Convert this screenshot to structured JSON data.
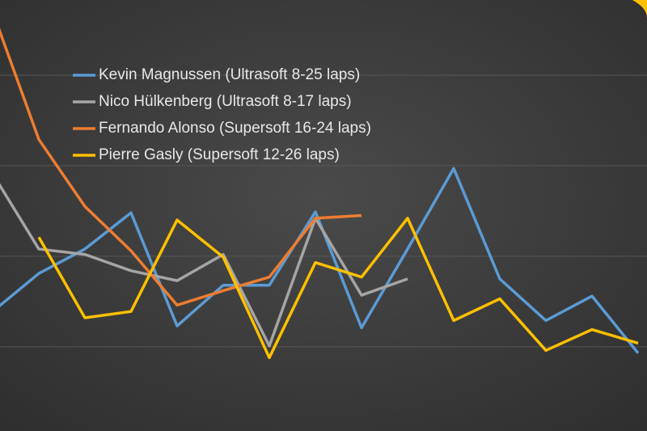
{
  "chart_data": {
    "type": "line",
    "categories": [
      null,
      null,
      null,
      null,
      null,
      null,
      null,
      null,
      null,
      null,
      null,
      null,
      null,
      null,
      null
    ],
    "series": [
      {
        "name": "Kevin Magnussen (Ultrasoft 8-25 laps)",
        "color": "#5b9bd5",
        "values": [
          1.39,
          1.81,
          2.08,
          2.48,
          1.23,
          1.68,
          1.68,
          2.49,
          1.21,
          2.08,
          2.97,
          1.75,
          1.29,
          1.56,
          0.93
        ]
      },
      {
        "name": "Nico Hülkenberg (Ultrasoft 8-17 laps)",
        "color": "#a5a5a5",
        "values": [
          2.91,
          2.08,
          2.02,
          1.84,
          1.73,
          2.02,
          1.01,
          2.42,
          1.57,
          1.75,
          null,
          null,
          null,
          null,
          null
        ]
      },
      {
        "name": "Fernando Alonso (Supersoft 16-24 laps)",
        "color": "#ed7d31",
        "values": [
          4.7,
          3.29,
          2.55,
          2.06,
          1.46,
          1.62,
          1.77,
          2.42,
          2.45,
          null,
          null,
          null,
          null,
          null,
          null
        ]
      },
      {
        "name": "Pierre Gasly (Supersoft 12-26 laps)",
        "color": "#ffc000",
        "values": [
          null,
          2.21,
          1.32,
          1.39,
          2.4,
          1.99,
          0.88,
          1.93,
          1.77,
          2.42,
          1.29,
          1.53,
          0.96,
          1.19,
          1.04
        ]
      }
    ],
    "ylim": [
      0.07,
      4.83
    ],
    "yticks": [
      1,
      2,
      3,
      4
    ],
    "grid": true
  }
}
